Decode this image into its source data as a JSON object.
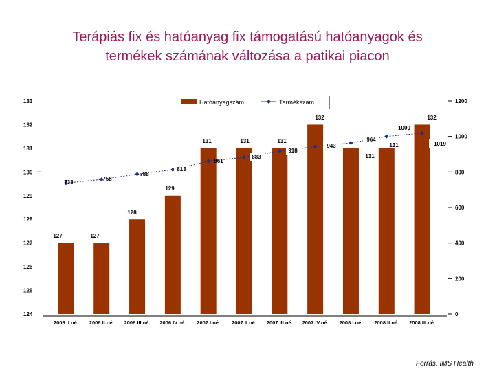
{
  "title_line1": "Terápiás fix és hatóanyag fix támogatású hatóanyagok és",
  "title_line2": "termékek számának változása a patikai piacon",
  "source": "Forrás: IMS Health",
  "chart_data": {
    "type": "bar+line",
    "categories": [
      "2006. I.né.",
      "2006.II.né.",
      "2006.III.né.",
      "2006.IV.né.",
      "2007.I.né.",
      "2007.II.né.",
      "2007.III.né.",
      "2007.IV.né.",
      "2008.I.né.",
      "2008.II.né.",
      "2008.III.né."
    ],
    "series": [
      {
        "name": "Hatóanyagszám",
        "kind": "bar",
        "axis": "left",
        "color": "#993300",
        "values": [
          127,
          127,
          128,
          129,
          131,
          131,
          131,
          132,
          131,
          131,
          132
        ],
        "labels": [
          "127",
          "127",
          "128",
          "129",
          "131",
          "131",
          "131",
          "132",
          "131",
          "131",
          "132"
        ]
      },
      {
        "name": "Termékszám",
        "kind": "line",
        "axis": "right",
        "color": "#1f2f8a",
        "values": [
          738,
          758,
          788,
          813,
          861,
          883,
          918,
          943,
          964,
          1000,
          1019
        ],
        "labels": [
          "738",
          "758",
          "788",
          "813",
          "861",
          "883",
          "918",
          "943",
          "964",
          "1000",
          "1019"
        ]
      }
    ],
    "y_left": {
      "min": 124,
      "max": 133,
      "ticks": [
        "124",
        "125",
        "126",
        "127",
        "128",
        "129",
        "130",
        "131",
        "132",
        "133"
      ]
    },
    "y_right": {
      "min": 0,
      "max": 1200,
      "ticks": [
        "0",
        "200",
        "400",
        "600",
        "800",
        "1000",
        "1200"
      ]
    },
    "legend_position": "top"
  }
}
